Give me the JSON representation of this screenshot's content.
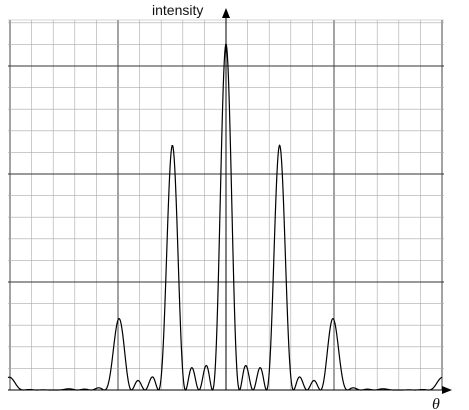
{
  "chart_data": {
    "type": "line",
    "title": "",
    "xlabel": "θ",
    "ylabel": "intensity",
    "xlim": [
      -4.6,
      4.0
    ],
    "ylim": [
      0,
      9.2
    ],
    "grid": {
      "minor": true,
      "major": true
    },
    "tick_labels": false,
    "series": [
      {
        "values_description": "",
        "peaks": [
          {
            "x": -2.0,
            "y": 2.4
          },
          {
            "x": -1.0,
            "y": 6.85
          },
          {
            "x": 0.0,
            "y": 9.2
          },
          {
            "x": 1.0,
            "y": 6.85
          },
          {
            "x": 2.0,
            "y": 2.4
          }
        ]
      }
    ]
  }
}
